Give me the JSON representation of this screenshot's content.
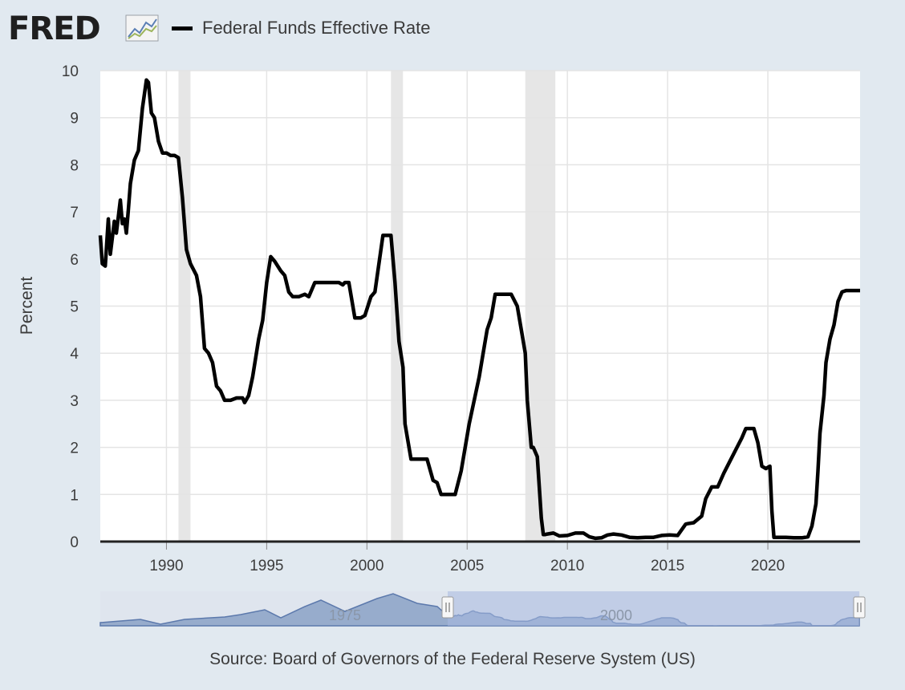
{
  "header": {
    "logo_text": "FRED",
    "logo_icon": "line-chart-icon",
    "legend_label": "Federal Funds Effective Rate"
  },
  "footer": {
    "source": "Source: Board of Governors of the Federal Reserve System (US)"
  },
  "colors": {
    "background": "#e1e9f0",
    "plot_background": "#ffffff",
    "line": "#000000",
    "recession_band": "#e6e6e6",
    "navigator_fill": "#8fa5c8",
    "navigator_selection": "#b8c6e4"
  },
  "chart_data": {
    "type": "line",
    "title": "",
    "xlabel": "",
    "ylabel": "Percent",
    "xlim": [
      1986.7,
      2024.6
    ],
    "ylim": [
      0,
      10
    ],
    "yticks": [
      0,
      1,
      2,
      3,
      4,
      5,
      6,
      7,
      8,
      9,
      10
    ],
    "xticks": [
      1990,
      1995,
      2000,
      2005,
      2010,
      2015,
      2020
    ],
    "grid": true,
    "legend_position": "top",
    "recessions": [
      [
        1990.6,
        1991.2
      ],
      [
        2001.2,
        2001.8
      ],
      [
        2007.9,
        2009.4
      ]
    ],
    "series": [
      {
        "name": "Federal Funds Effective Rate",
        "x": [
          1986.7,
          1986.8,
          1986.95,
          1987.1,
          1987.2,
          1987.4,
          1987.5,
          1987.6,
          1987.7,
          1987.8,
          1987.9,
          1988.0,
          1988.1,
          1988.2,
          1988.4,
          1988.6,
          1988.8,
          1989.0,
          1989.1,
          1989.25,
          1989.4,
          1989.6,
          1989.8,
          1990.0,
          1990.2,
          1990.4,
          1990.6,
          1990.8,
          1991.0,
          1991.2,
          1991.5,
          1991.7,
          1991.9,
          1992.1,
          1992.3,
          1992.5,
          1992.7,
          1992.9,
          1993.2,
          1993.5,
          1993.8,
          1993.9,
          1994.1,
          1994.3,
          1994.6,
          1994.8,
          1995.0,
          1995.2,
          1995.4,
          1995.7,
          1995.9,
          1996.1,
          1996.3,
          1996.6,
          1996.9,
          1997.1,
          1997.4,
          1997.7,
          1998.0,
          1998.3,
          1998.6,
          1998.8,
          1998.9,
          1999.1,
          1999.4,
          1999.7,
          1999.9,
          2000.2,
          2000.4,
          2000.6,
          2000.8,
          2001.0,
          2001.2,
          2001.4,
          2001.6,
          2001.8,
          2001.9,
          2002.2,
          2002.6,
          2002.9,
          2003.0,
          2003.3,
          2003.5,
          2003.7,
          2004.0,
          2004.4,
          2004.7,
          2004.9,
          2005.1,
          2005.3,
          2005.6,
          2005.8,
          2006.0,
          2006.2,
          2006.4,
          2006.6,
          2006.9,
          2007.2,
          2007.5,
          2007.7,
          2007.9,
          2008.0,
          2008.2,
          2008.3,
          2008.5,
          2008.7,
          2008.8,
          2008.9,
          2009.0,
          2009.3,
          2009.6,
          2010.0,
          2010.4,
          2010.8,
          2011.1,
          2011.4,
          2011.7,
          2012.0,
          2012.3,
          2012.7,
          2013.1,
          2013.5,
          2013.9,
          2014.3,
          2014.7,
          2015.1,
          2015.5,
          2015.9,
          2016.0,
          2016.3,
          2016.7,
          2016.9,
          2017.2,
          2017.5,
          2017.8,
          2018.1,
          2018.4,
          2018.7,
          2018.9,
          2019.1,
          2019.3,
          2019.5,
          2019.7,
          2019.9,
          2020.1,
          2020.2,
          2020.3,
          2020.5,
          2020.9,
          2021.3,
          2021.7,
          2022.0,
          2022.2,
          2022.4,
          2022.5,
          2022.6,
          2022.8,
          2022.9,
          2023.1,
          2023.3,
          2023.5,
          2023.7,
          2023.9,
          2024.1,
          2024.3,
          2024.6
        ],
        "y": [
          6.5,
          5.9,
          5.85,
          6.85,
          6.1,
          6.8,
          6.55,
          6.9,
          7.25,
          6.75,
          6.85,
          6.55,
          7.05,
          7.6,
          8.1,
          8.3,
          9.2,
          9.8,
          9.75,
          9.1,
          9.0,
          8.5,
          8.25,
          8.25,
          8.2,
          8.2,
          8.15,
          7.3,
          6.2,
          5.9,
          5.65,
          5.2,
          4.1,
          4.0,
          3.8,
          3.3,
          3.2,
          3.0,
          3.0,
          3.05,
          3.05,
          2.95,
          3.1,
          3.5,
          4.3,
          4.7,
          5.5,
          6.05,
          5.95,
          5.75,
          5.65,
          5.3,
          5.2,
          5.2,
          5.25,
          5.2,
          5.5,
          5.5,
          5.5,
          5.5,
          5.5,
          5.45,
          5.5,
          5.5,
          4.75,
          4.75,
          4.8,
          5.2,
          5.3,
          5.9,
          6.5,
          6.5,
          6.5,
          5.5,
          4.25,
          3.7,
          2.5,
          1.75,
          1.75,
          1.75,
          1.75,
          1.3,
          1.25,
          1.0,
          1.0,
          1.0,
          1.5,
          2.0,
          2.5,
          2.9,
          3.5,
          4.0,
          4.5,
          4.75,
          5.25,
          5.25,
          5.25,
          5.25,
          5.0,
          4.5,
          4.0,
          3.0,
          2.0,
          2.0,
          1.8,
          0.5,
          0.15,
          0.15,
          0.16,
          0.18,
          0.12,
          0.13,
          0.18,
          0.18,
          0.1,
          0.07,
          0.08,
          0.14,
          0.16,
          0.14,
          0.09,
          0.08,
          0.09,
          0.09,
          0.13,
          0.14,
          0.13,
          0.37,
          0.38,
          0.4,
          0.54,
          0.91,
          1.16,
          1.16,
          1.45,
          1.7,
          1.95,
          2.2,
          2.4,
          2.4,
          2.4,
          2.1,
          1.6,
          1.55,
          1.6,
          0.65,
          0.09,
          0.09,
          0.09,
          0.08,
          0.08,
          0.1,
          0.33,
          0.8,
          1.5,
          2.3,
          3.1,
          3.8,
          4.3,
          4.6,
          5.1,
          5.3,
          5.33,
          5.33,
          5.33,
          5.33
        ]
      }
    ]
  }
}
